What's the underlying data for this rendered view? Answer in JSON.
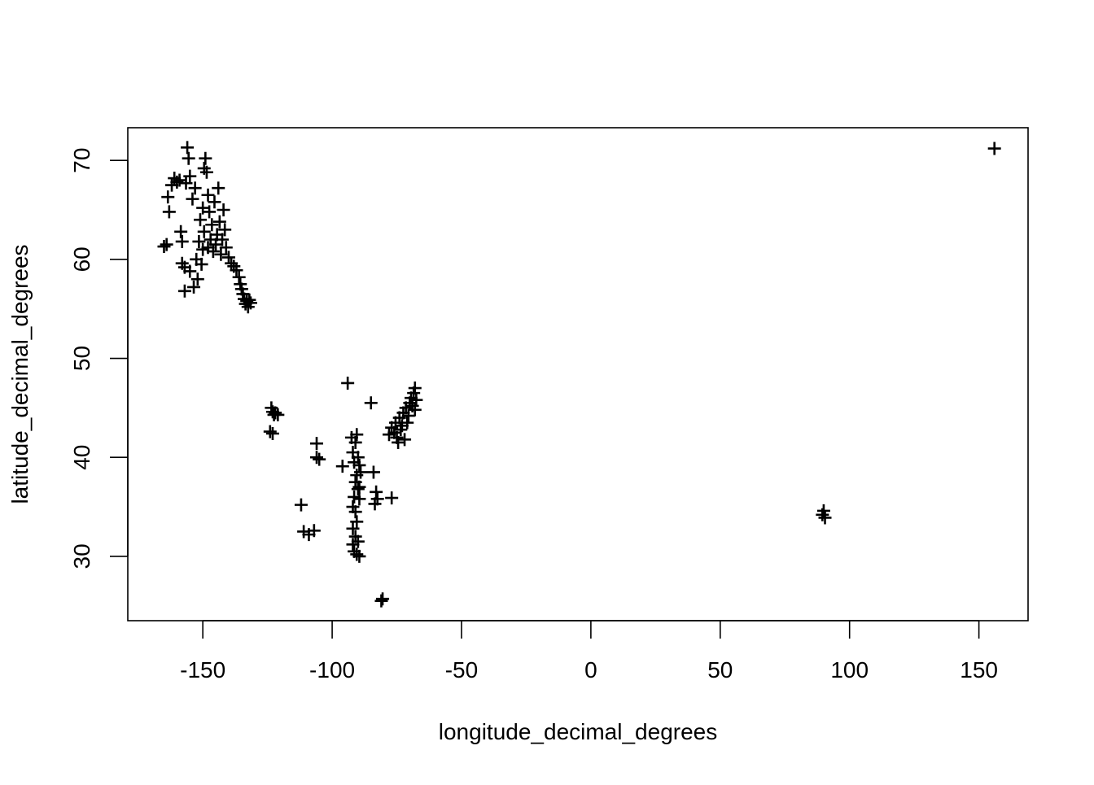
{
  "chart_data": {
    "type": "scatter",
    "title": "",
    "xlabel": "longitude_decimal_degrees",
    "ylabel": "latitude_decimal_degrees",
    "xlim": [
      -179,
      169
    ],
    "ylim": [
      23.5,
      73.3
    ],
    "xticks": [
      -150,
      -100,
      -50,
      0,
      50,
      100,
      150
    ],
    "yticks": [
      30,
      40,
      50,
      60,
      70
    ],
    "grid": false,
    "marker": "+",
    "marker_color": "#000000",
    "series": [
      {
        "points": [
          [
            -165,
            61.3
          ],
          [
            -164,
            61.5
          ],
          [
            -163.5,
            66.3
          ],
          [
            -163,
            64.8
          ],
          [
            -162,
            67.5
          ],
          [
            -161,
            68.2
          ],
          [
            -160,
            67.8
          ],
          [
            -159,
            68.0
          ],
          [
            -158.5,
            62.8
          ],
          [
            -158,
            61.8
          ],
          [
            -158,
            59.6
          ],
          [
            -157,
            59.2
          ],
          [
            -157,
            56.8
          ],
          [
            -156.5,
            67.7
          ],
          [
            -156,
            71.3
          ],
          [
            -155.5,
            70.2
          ],
          [
            -155,
            68.4
          ],
          [
            -155,
            58.8
          ],
          [
            -154,
            66.1
          ],
          [
            -153.5,
            57.2
          ],
          [
            -153,
            67.2
          ],
          [
            -152.5,
            60.0
          ],
          [
            -152,
            58.0
          ],
          [
            -151.5,
            61.8
          ],
          [
            -151,
            64.0
          ],
          [
            -150.5,
            59.5
          ],
          [
            -150,
            61.0
          ],
          [
            -150,
            65.2
          ],
          [
            -149.5,
            62.8
          ],
          [
            -149.5,
            69.2
          ],
          [
            -149,
            70.2
          ],
          [
            -148.5,
            68.8
          ],
          [
            -148,
            66.5
          ],
          [
            -148,
            61.2
          ],
          [
            -147.5,
            64.8
          ],
          [
            -147,
            62.0
          ],
          [
            -146.5,
            63.5
          ],
          [
            -146,
            60.8
          ],
          [
            -145.5,
            65.8
          ],
          [
            -145,
            61.5
          ],
          [
            -144.5,
            62.5
          ],
          [
            -144,
            67.2
          ],
          [
            -143.5,
            63.8
          ],
          [
            -143,
            60.5
          ],
          [
            -142.5,
            62.0
          ],
          [
            -142,
            65.0
          ],
          [
            -141.5,
            63.0
          ],
          [
            -141,
            61.2
          ],
          [
            -140,
            60.2
          ],
          [
            -139,
            59.6
          ],
          [
            -138,
            59.3
          ],
          [
            -137,
            58.9
          ],
          [
            -136,
            58.2
          ],
          [
            -135.5,
            57.5
          ],
          [
            -135,
            57.0
          ],
          [
            -134.5,
            56.5
          ],
          [
            -134,
            56.0
          ],
          [
            -133.5,
            55.5
          ],
          [
            -133,
            55.8
          ],
          [
            -132.5,
            55.2
          ],
          [
            -132,
            55.9
          ],
          [
            -131.5,
            55.6
          ],
          [
            -123.5,
            45.0
          ],
          [
            -123,
            44.6
          ],
          [
            -122.5,
            44.3
          ],
          [
            -122,
            44.5
          ],
          [
            -121,
            44.3
          ],
          [
            -124,
            42.6
          ],
          [
            -123,
            42.4
          ],
          [
            -112,
            35.2
          ],
          [
            -111,
            32.5
          ],
          [
            -109,
            32.2
          ],
          [
            -107,
            32.6
          ],
          [
            -106,
            41.4
          ],
          [
            -106,
            40.0
          ],
          [
            -105,
            39.8
          ],
          [
            -96,
            39.1
          ],
          [
            -94,
            47.5
          ],
          [
            -92.5,
            42.0
          ],
          [
            -92,
            40.5
          ],
          [
            -91.5,
            39.5
          ],
          [
            -91,
            41.5
          ],
          [
            -90.5,
            42.3
          ],
          [
            -90,
            40.0
          ],
          [
            -89.5,
            39.2
          ],
          [
            -89,
            38.5
          ],
          [
            -90.5,
            38.2
          ],
          [
            -91,
            37.5
          ],
          [
            -90,
            36.8
          ],
          [
            -89.5,
            37.0
          ],
          [
            -91.5,
            36.0
          ],
          [
            -92,
            35.0
          ],
          [
            -91,
            34.5
          ],
          [
            -90.5,
            33.5
          ],
          [
            -92,
            32.8
          ],
          [
            -91,
            32.0
          ],
          [
            -92,
            31.2
          ],
          [
            -91.5,
            30.5
          ],
          [
            -90.5,
            30.2
          ],
          [
            -89.5,
            30.0
          ],
          [
            -90,
            31.5
          ],
          [
            -89.5,
            35.8
          ],
          [
            -85,
            45.5
          ],
          [
            -84,
            38.5
          ],
          [
            -83,
            36.5
          ],
          [
            -82.5,
            35.8
          ],
          [
            -83.5,
            35.3
          ],
          [
            -77,
            35.9
          ],
          [
            -80.5,
            25.7
          ],
          [
            -81,
            25.5
          ],
          [
            -78,
            42.3
          ],
          [
            -77,
            43.0
          ],
          [
            -76,
            42.5
          ],
          [
            -75.5,
            43.5
          ],
          [
            -75,
            42.0
          ],
          [
            -74.5,
            41.5
          ],
          [
            -74,
            44.0
          ],
          [
            -73.5,
            42.8
          ],
          [
            -73,
            43.2
          ],
          [
            -72.5,
            44.5
          ],
          [
            -72,
            41.8
          ],
          [
            -71.5,
            45.0
          ],
          [
            -71,
            43.5
          ],
          [
            -70.5,
            44.2
          ],
          [
            -70,
            45.5
          ],
          [
            -69.5,
            46.0
          ],
          [
            -69,
            45.2
          ],
          [
            -68.5,
            46.5
          ],
          [
            -68,
            47.0
          ],
          [
            -68,
            44.8
          ],
          [
            -67.5,
            45.8
          ],
          [
            89.5,
            34.2
          ],
          [
            90,
            34.6
          ],
          [
            90.5,
            33.9
          ],
          [
            156,
            71.2
          ]
        ]
      }
    ]
  }
}
